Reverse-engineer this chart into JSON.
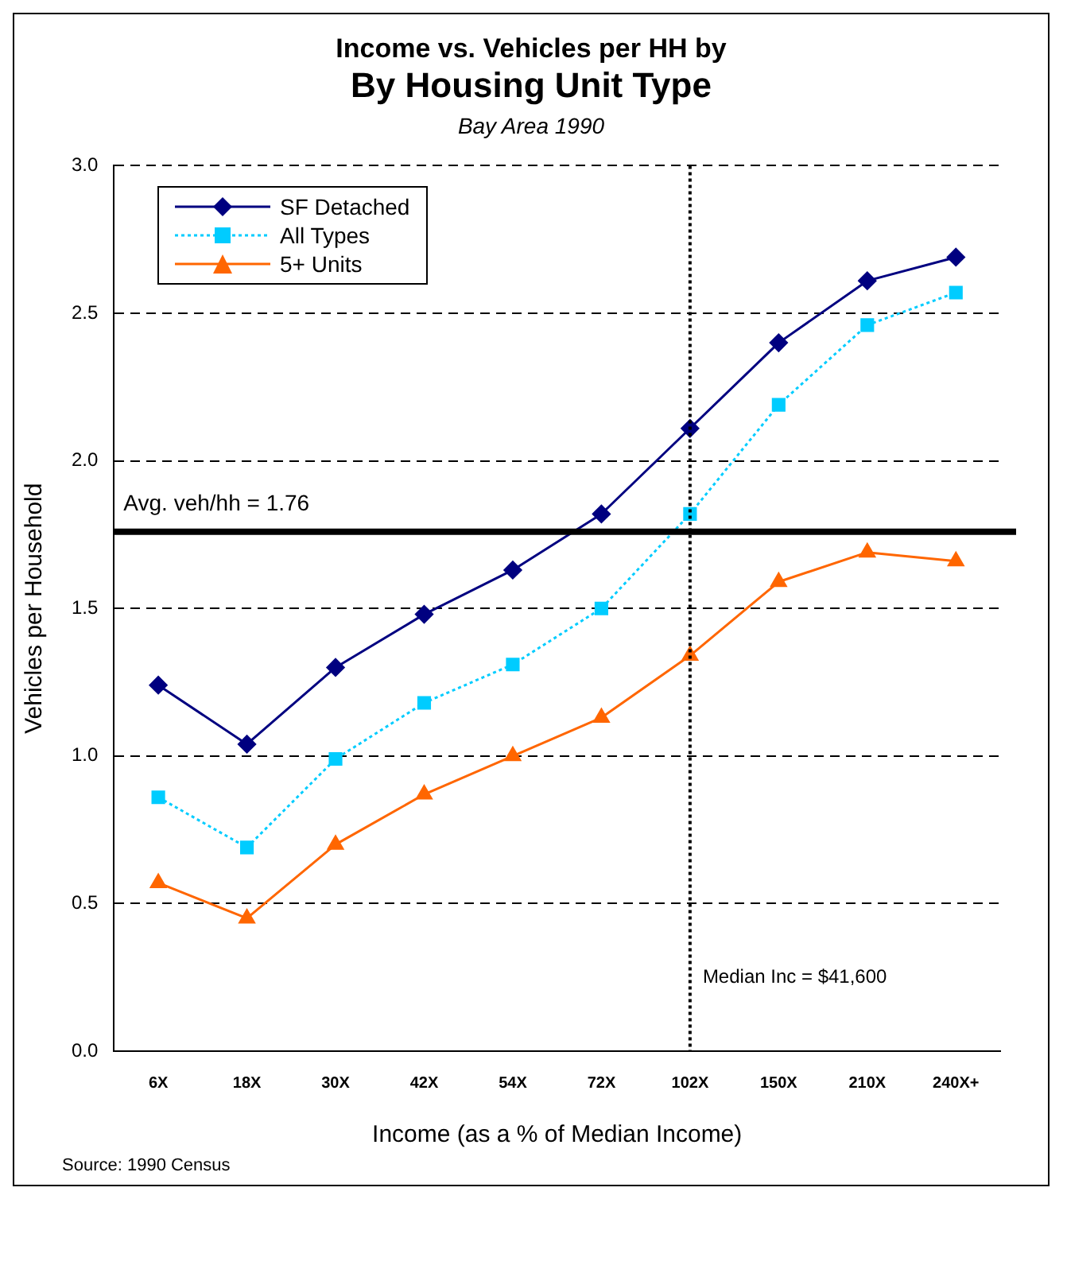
{
  "chart_data": {
    "type": "line",
    "title": "Income vs. Vehicles per HH by\nBy Housing Unit Type",
    "subtitle": "Bay Area 1990",
    "xlabel": "Income (as a % of Median Income)",
    "ylabel": "Vehicles per Household",
    "categories": [
      "6X",
      "18X",
      "30X",
      "42X",
      "54X",
      "72X",
      "102X",
      "150X",
      "210X",
      "240X+"
    ],
    "series": [
      {
        "name": "SF Detached",
        "color": "#000080",
        "marker": "diamond",
        "line_style": "solid",
        "values": [
          1.24,
          1.04,
          1.3,
          1.48,
          1.63,
          1.82,
          2.11,
          2.4,
          2.61,
          2.69
        ]
      },
      {
        "name": "All Types",
        "color": "#00ccff",
        "marker": "square",
        "line_style": "dotted",
        "values": [
          0.86,
          0.69,
          0.99,
          1.18,
          1.31,
          1.5,
          1.82,
          2.19,
          2.46,
          2.57
        ]
      },
      {
        "name": "5+ Units",
        "color": "#ff6600",
        "marker": "triangle",
        "line_style": "solid",
        "values": [
          0.57,
          0.45,
          0.7,
          0.87,
          1.0,
          1.13,
          1.34,
          1.59,
          1.69,
          1.66
        ]
      }
    ],
    "ylim": [
      0,
      3
    ],
    "yticks": [
      {
        "value": 0,
        "label": "0.0"
      },
      {
        "value": 0.5,
        "label": "0.5"
      },
      {
        "value": 1,
        "label": "1.0"
      },
      {
        "value": 1.5,
        "label": "1.5"
      },
      {
        "value": 2,
        "label": "2.0"
      },
      {
        "value": 2.5,
        "label": "2.5"
      },
      {
        "value": 3,
        "label": "3.0"
      }
    ],
    "ref_lines": [
      {
        "axis": "y",
        "value": 1.76,
        "label": "Avg. veh/hh = 1.76",
        "color": "#000000",
        "line_style": "solid"
      },
      {
        "axis": "x",
        "value": "102X",
        "label": "Median Inc = $41,600",
        "color": "#000000",
        "line_style": "dotted"
      }
    ],
    "annotations": [
      "Source: 1990 Census"
    ],
    "grid": "y",
    "legend": "top left"
  }
}
